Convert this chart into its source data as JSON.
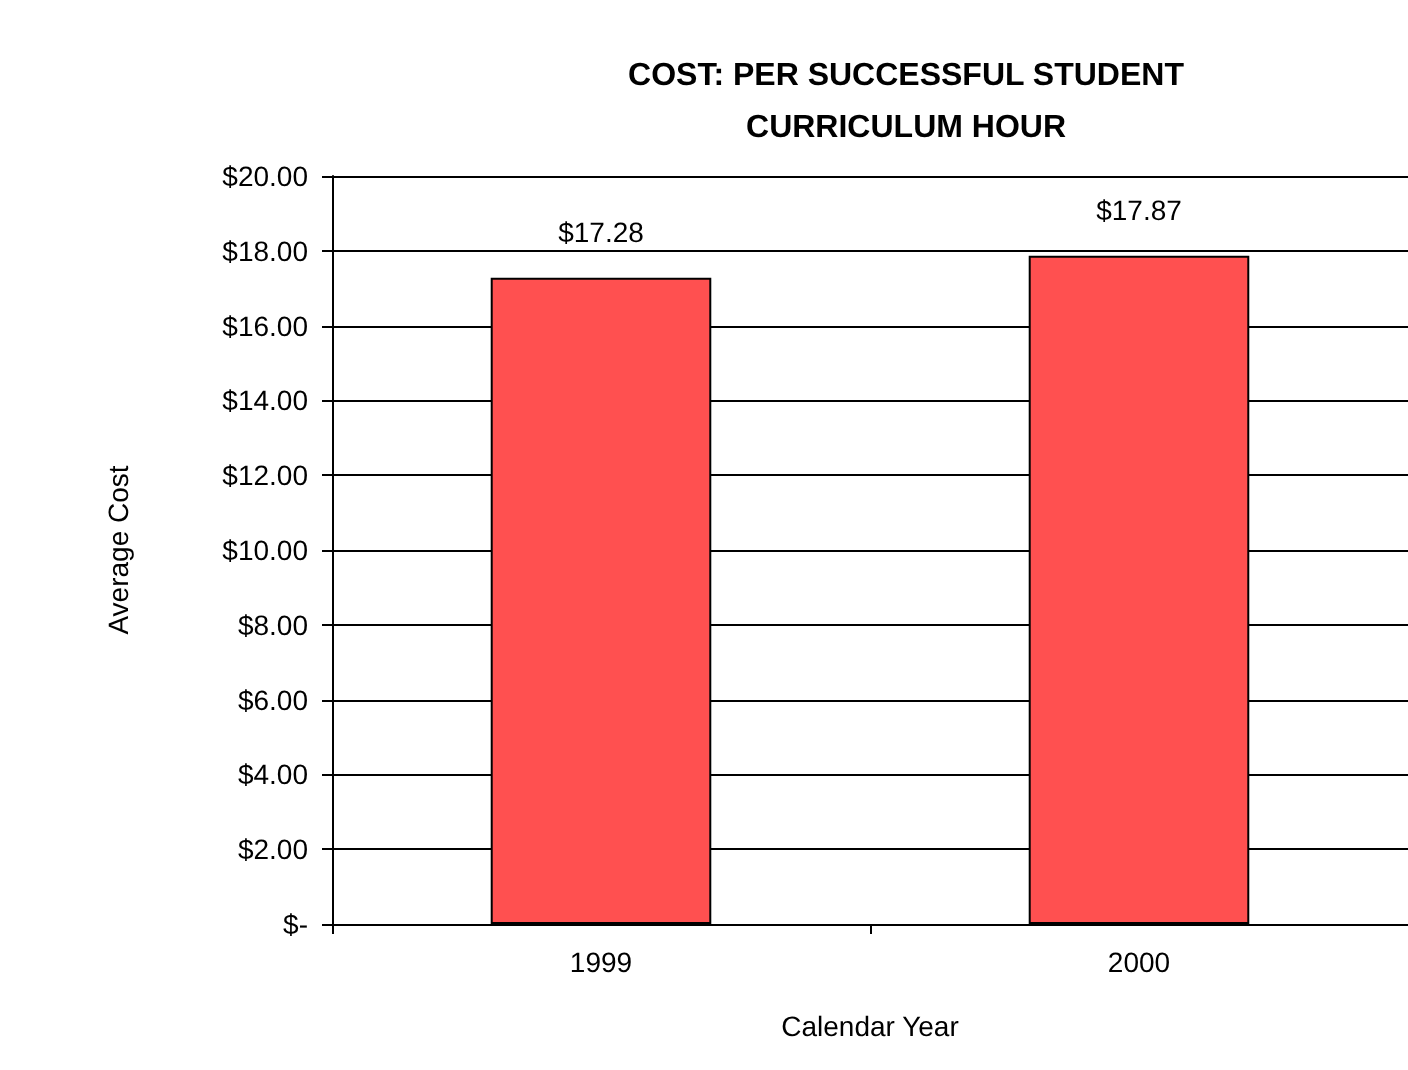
{
  "chart_data": {
    "type": "bar",
    "title": "COST: PER SUCCESSFUL STUDENT\nCURRICULUM HOUR",
    "xlabel": "Calendar Year",
    "ylabel": "Average Cost",
    "categories": [
      "1999",
      "2000"
    ],
    "values": [
      17.28,
      17.87
    ],
    "value_labels": [
      "$17.28",
      "$17.87"
    ],
    "color": "#ff5050",
    "ylim": [
      0,
      20
    ],
    "yticks": [
      {
        "value": 0,
        "label": "$-"
      },
      {
        "value": 2,
        "label": "$2.00"
      },
      {
        "value": 4,
        "label": "$4.00"
      },
      {
        "value": 6,
        "label": "$6.00"
      },
      {
        "value": 8,
        "label": "$8.00"
      },
      {
        "value": 10,
        "label": "$10.00"
      },
      {
        "value": 12,
        "label": "$12.00"
      },
      {
        "value": 14,
        "label": "$14.00"
      },
      {
        "value": 16,
        "label": "$16.00"
      },
      {
        "value": 18,
        "label": "$18.00"
      },
      {
        "value": 20,
        "label": "$20.00"
      }
    ],
    "grid": "y"
  }
}
